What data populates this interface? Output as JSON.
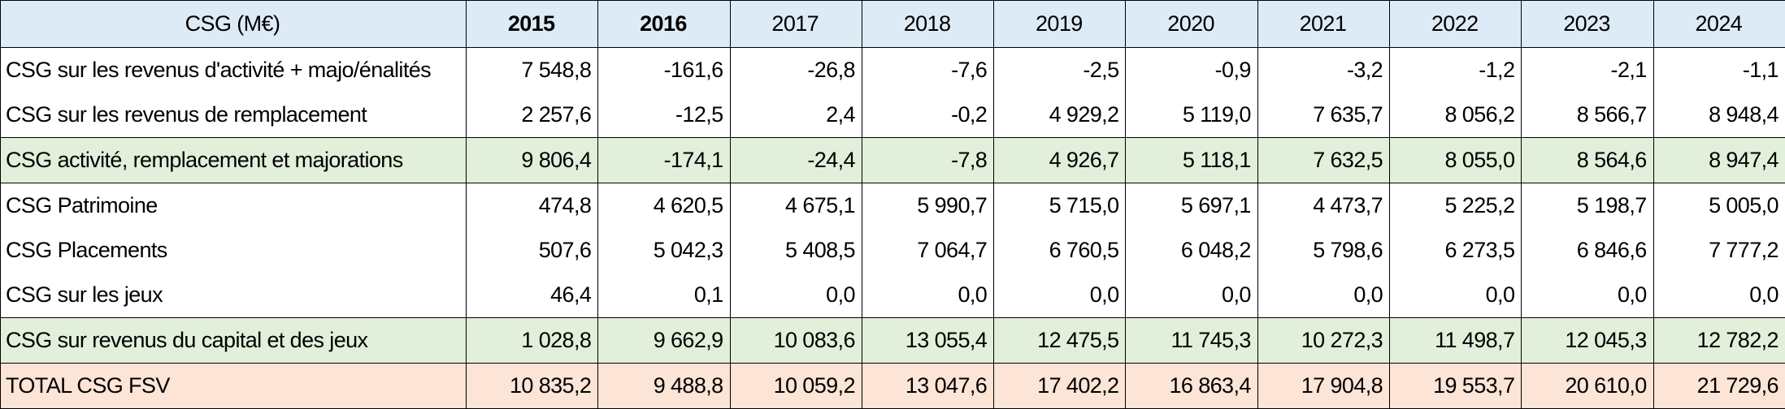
{
  "table": {
    "header": {
      "label": "CSG (M€)",
      "years": [
        "2015",
        "2016",
        "2017",
        "2018",
        "2019",
        "2020",
        "2021",
        "2022",
        "2023",
        "2024"
      ],
      "bold_years": [
        "2015",
        "2016"
      ]
    },
    "rows": [
      {
        "label": "CSG sur les revenus d'activité + majo/énalités",
        "type": "normal",
        "values": [
          "7 548,8",
          "-161,6",
          "-26,8",
          "-7,6",
          "-2,5",
          "-0,9",
          "-3,2",
          "-1,2",
          "-2,1",
          "-1,1"
        ]
      },
      {
        "label": "CSG sur les revenus de remplacement",
        "type": "normal",
        "values": [
          "2 257,6",
          "-12,5",
          "2,4",
          "-0,2",
          "4 929,2",
          "5 119,0",
          "7 635,7",
          "8 056,2",
          "8 566,7",
          "8 948,4"
        ]
      },
      {
        "label": "CSG activité, remplacement et majorations",
        "type": "subtotal",
        "values": [
          "9 806,4",
          "-174,1",
          "-24,4",
          "-7,8",
          "4 926,7",
          "5 118,1",
          "7 632,5",
          "8 055,0",
          "8 564,6",
          "8 947,4"
        ]
      },
      {
        "label": "CSG Patrimoine",
        "type": "normal",
        "values": [
          "474,8",
          "4 620,5",
          "4 675,1",
          "5 990,7",
          "5 715,0",
          "5 697,1",
          "4 473,7",
          "5 225,2",
          "5 198,7",
          "5 005,0"
        ]
      },
      {
        "label": "CSG Placements",
        "type": "normal",
        "values": [
          "507,6",
          "5 042,3",
          "5 408,5",
          "7 064,7",
          "6 760,5",
          "6 048,2",
          "5 798,6",
          "6 273,5",
          "6 846,6",
          "7 777,2"
        ]
      },
      {
        "label": "CSG sur les jeux",
        "type": "normal",
        "values": [
          "46,4",
          "0,1",
          "0,0",
          "0,0",
          "0,0",
          "0,0",
          "0,0",
          "0,0",
          "0,0",
          "0,0"
        ]
      },
      {
        "label": "CSG sur revenus du capital et des jeux",
        "type": "subtotal",
        "values": [
          "1 028,8",
          "9 662,9",
          "10 083,6",
          "13 055,4",
          "12 475,5",
          "11 745,3",
          "10 272,3",
          "11 498,7",
          "12 045,3",
          "12 782,2"
        ]
      },
      {
        "label": "TOTAL CSG FSV",
        "type": "total",
        "values": [
          "10 835,2",
          "9 488,8",
          "10 059,2",
          "13 047,6",
          "17 402,2",
          "16 863,4",
          "17 904,8",
          "19 553,7",
          "20 610,0",
          "21 729,6"
        ]
      }
    ]
  }
}
